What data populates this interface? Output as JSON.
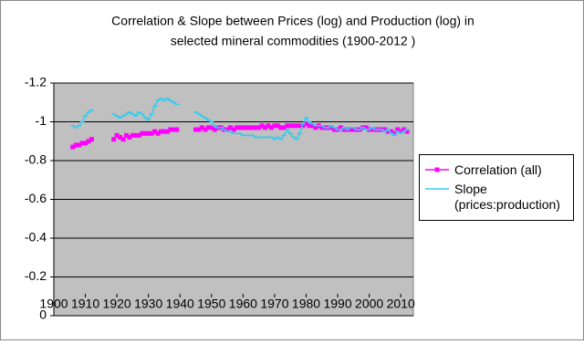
{
  "chart_data": {
    "type": "line",
    "title": [
      "Correlation & Slope between Prices (log) and Production (log) in",
      "selected mineral commodities (1900-2012 )"
    ],
    "x": [
      1906,
      1907,
      1908,
      1909,
      1910,
      1911,
      1912,
      1913,
      1914,
      1915,
      1916,
      1917,
      1918,
      1919,
      1920,
      1921,
      1922,
      1923,
      1924,
      1925,
      1926,
      1927,
      1928,
      1929,
      1930,
      1931,
      1932,
      1933,
      1934,
      1935,
      1936,
      1937,
      1938,
      1939,
      1940,
      1941,
      1942,
      1943,
      1944,
      1945,
      1946,
      1947,
      1948,
      1949,
      1950,
      1951,
      1952,
      1953,
      1954,
      1955,
      1956,
      1957,
      1958,
      1959,
      1960,
      1961,
      1962,
      1963,
      1964,
      1965,
      1966,
      1967,
      1968,
      1969,
      1970,
      1971,
      1972,
      1973,
      1974,
      1975,
      1976,
      1977,
      1978,
      1979,
      1980,
      1981,
      1982,
      1983,
      1984,
      1985,
      1986,
      1987,
      1988,
      1989,
      1990,
      1991,
      1992,
      1993,
      1994,
      1995,
      1996,
      1997,
      1998,
      1999,
      2000,
      2001,
      2002,
      2003,
      2004,
      2005,
      2006,
      2007,
      2008,
      2009,
      2010,
      2011,
      2012
    ],
    "series": [
      {
        "name": "Correlation (all)",
        "color": "#ff00ff",
        "marker": "square",
        "values": [
          -0.87,
          -0.88,
          -0.88,
          -0.89,
          -0.89,
          -0.9,
          -0.91,
          null,
          null,
          null,
          null,
          null,
          null,
          -0.91,
          -0.93,
          -0.92,
          -0.91,
          -0.93,
          -0.92,
          -0.93,
          -0.93,
          -0.93,
          -0.94,
          -0.94,
          -0.94,
          -0.94,
          -0.95,
          -0.94,
          -0.95,
          -0.95,
          -0.95,
          -0.96,
          -0.96,
          -0.96,
          null,
          null,
          null,
          null,
          null,
          -0.96,
          -0.96,
          -0.97,
          -0.96,
          -0.97,
          -0.97,
          -0.96,
          -0.97,
          -0.97,
          -0.96,
          -0.96,
          -0.97,
          -0.96,
          -0.97,
          -0.97,
          -0.97,
          -0.97,
          -0.97,
          -0.97,
          -0.97,
          -0.97,
          -0.98,
          -0.97,
          -0.98,
          -0.97,
          -0.98,
          -0.98,
          -0.97,
          -0.97,
          -0.98,
          -0.98,
          -0.98,
          -0.98,
          -0.98,
          -0.98,
          -0.99,
          -0.98,
          -0.98,
          -0.97,
          -0.98,
          -0.97,
          -0.97,
          -0.97,
          -0.97,
          -0.96,
          -0.96,
          -0.97,
          -0.96,
          -0.96,
          -0.96,
          -0.96,
          -0.96,
          -0.96,
          -0.97,
          -0.97,
          -0.96,
          -0.96,
          -0.96,
          -0.96,
          -0.96,
          -0.96,
          -0.95,
          -0.95,
          -0.94,
          -0.96,
          -0.95,
          -0.96,
          -0.95
        ]
      },
      {
        "name": "Slope (prices:production)",
        "color": "#33ccee",
        "marker": "dash",
        "values": [
          -0.98,
          -0.97,
          -0.98,
          -1.0,
          -1.03,
          -1.05,
          -1.06,
          null,
          null,
          null,
          null,
          null,
          null,
          -1.04,
          -1.03,
          -1.02,
          -1.03,
          -1.04,
          -1.05,
          -1.04,
          -1.03,
          -1.05,
          -1.04,
          -1.02,
          -1.01,
          -1.04,
          -1.08,
          -1.11,
          -1.12,
          -1.11,
          -1.12,
          -1.11,
          -1.1,
          -1.09,
          null,
          null,
          null,
          null,
          null,
          -1.05,
          -1.04,
          -1.03,
          -1.02,
          -1.01,
          -1.0,
          -0.98,
          -0.97,
          -0.97,
          -0.96,
          -0.95,
          -0.95,
          -0.94,
          -0.94,
          -0.94,
          -0.93,
          -0.93,
          -0.93,
          -0.93,
          -0.92,
          -0.92,
          -0.92,
          -0.92,
          -0.92,
          -0.92,
          -0.91,
          -0.92,
          -0.91,
          -0.93,
          -0.96,
          -0.94,
          -0.92,
          -0.91,
          -0.94,
          -0.99,
          -1.02,
          -1.0,
          -0.99,
          -0.98,
          -0.98,
          -0.98,
          -0.97,
          -0.97,
          -0.98,
          -0.97,
          -0.96,
          -0.96,
          -0.97,
          -0.96,
          -0.97,
          -0.97,
          -0.96,
          -0.96,
          -0.97,
          -0.96,
          -0.96,
          -0.97,
          -0.96,
          -0.96,
          -0.96,
          -0.95,
          -0.96,
          -0.94,
          -0.93,
          -0.95,
          -0.94,
          -0.95,
          -0.96
        ]
      }
    ],
    "xlim": [
      1900,
      2014
    ],
    "xticks": [
      1900,
      1910,
      1920,
      1930,
      1940,
      1950,
      1960,
      1970,
      1980,
      1990,
      2000,
      2010
    ],
    "ylim": [
      0,
      -1.2
    ],
    "yticks": [
      0,
      -0.2,
      -0.4,
      -0.6,
      -0.8,
      -1,
      -1.2
    ],
    "grid": true,
    "legend": "right"
  }
}
